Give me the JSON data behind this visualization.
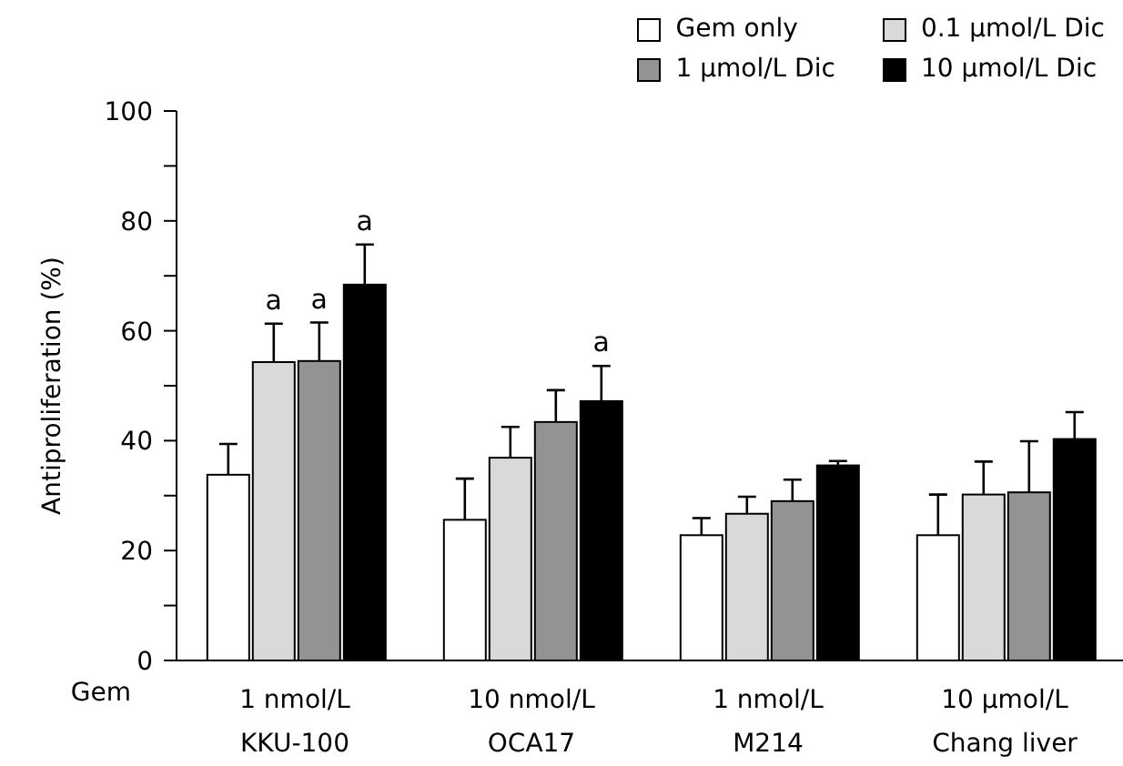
{
  "chart_data": {
    "type": "bar",
    "ylabel": "Antiproliferation (%)",
    "xlabel": "Gem",
    "categories": [
      "1 nmol/L\nKKU-100",
      "10 nmol/L\nOCA17",
      "1 nmol/L\nM214",
      "10 μmol/L\nChang liver"
    ],
    "series": [
      {
        "name": "Gem only",
        "color": "#ffffff",
        "values": [
          33.8,
          25.6,
          22.8,
          22.8
        ],
        "errors": [
          [
            33.8,
            39.4
          ],
          [
            25.6,
            33.1
          ],
          [
            22.8,
            25.9
          ],
          [
            22.8,
            30.2
          ]
        ]
      },
      {
        "name": "0.1 μmol/L Dic",
        "color": "#d9d9d9",
        "values": [
          54.3,
          36.9,
          26.7,
          30.2
        ],
        "errors": [
          [
            54.3,
            61.3
          ],
          [
            36.9,
            42.5
          ],
          [
            26.7,
            29.8
          ],
          [
            30.2,
            36.2
          ]
        ],
        "value_labels": [
          "a",
          null,
          null,
          null
        ]
      },
      {
        "name": "1 μmol/L Dic",
        "color": "#939393",
        "values": [
          54.5,
          43.4,
          29.0,
          30.6
        ],
        "errors": [
          [
            54.5,
            61.5
          ],
          [
            43.4,
            49.2
          ],
          [
            29.0,
            32.9
          ],
          [
            30.6,
            39.9
          ]
        ],
        "value_labels": [
          "a",
          null,
          null,
          null
        ]
      },
      {
        "name": "10 μmol/L Dic",
        "color": "#000000",
        "values": [
          68.4,
          47.2,
          35.5,
          40.3
        ],
        "errors": [
          [
            68.4,
            75.7
          ],
          [
            47.2,
            53.6
          ],
          [
            35.5,
            36.3
          ],
          [
            40.3,
            45.2
          ]
        ],
        "value_labels": [
          "a",
          "a",
          null,
          null
        ]
      }
    ],
    "ylim": [
      0,
      100
    ],
    "yticks": [
      0,
      {
        "value": 10,
        "label": null
      },
      20,
      {
        "value": 30,
        "label": null
      },
      40,
      {
        "value": 50,
        "label": null
      },
      60,
      {
        "value": 70,
        "label": null
      },
      80,
      {
        "value": 90,
        "label": null
      },
      100
    ],
    "grid": false,
    "legend": "top right"
  }
}
